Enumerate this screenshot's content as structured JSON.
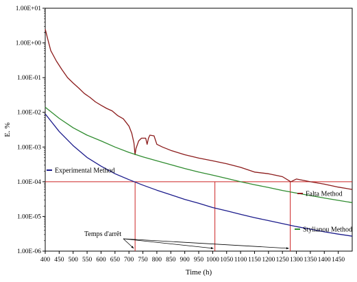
{
  "chart_data": {
    "type": "line",
    "xlabel": "Time (h)",
    "ylabel": "E. %",
    "xlim": [
      400,
      1500
    ],
    "ylim": [
      1e-06,
      10
    ],
    "yscale": "log",
    "x_ticks": [
      400,
      450,
      500,
      550,
      600,
      650,
      700,
      750,
      800,
      850,
      900,
      950,
      1000,
      1050,
      1100,
      1150,
      1200,
      1250,
      1300,
      1350,
      1400,
      1450
    ],
    "y_ticks": [
      {
        "value": 10,
        "label": "1.00E+01"
      },
      {
        "value": 1,
        "label": "1.00E+00"
      },
      {
        "value": 0.1,
        "label": "1.00E-01"
      },
      {
        "value": 0.01,
        "label": "1.00E-02"
      },
      {
        "value": 0.001,
        "label": "1.00E-03"
      },
      {
        "value": 0.0001,
        "label": "1.00E-04"
      },
      {
        "value": 1e-05,
        "label": "1.00E-05"
      },
      {
        "value": 1e-06,
        "label": "1.00E-06"
      }
    ],
    "grid": false,
    "series": [
      {
        "name": "Falta Method",
        "color": "#8b1a1a",
        "x": [
          400,
          410,
          420,
          440,
          460,
          480,
          500,
          520,
          540,
          560,
          580,
          600,
          620,
          640,
          660,
          680,
          700,
          710,
          718,
          722,
          725,
          735,
          745,
          760,
          765,
          770,
          775,
          790,
          800,
          820,
          850,
          900,
          950,
          1000,
          1050,
          1100,
          1150,
          1200,
          1250,
          1280,
          1300,
          1350,
          1400,
          1450,
          1500
        ],
        "y": [
          2.5,
          1.2,
          0.6,
          0.3,
          0.17,
          0.1,
          0.07,
          0.05,
          0.035,
          0.027,
          0.02,
          0.016,
          0.013,
          0.011,
          0.008,
          0.0065,
          0.004,
          0.0025,
          0.0013,
          0.0006,
          0.0009,
          0.0015,
          0.0018,
          0.0018,
          0.0012,
          0.0018,
          0.0022,
          0.0021,
          0.0012,
          0.001,
          0.0008,
          0.0006,
          0.00048,
          0.0004,
          0.00033,
          0.00026,
          0.00019,
          0.00017,
          0.00014,
          0.0001,
          0.00012,
          0.0001,
          8.5e-05,
          7e-05,
          6e-05
        ]
      },
      {
        "name": "Stylianou Method",
        "color": "#2e8b2e",
        "x": [
          400,
          450,
          500,
          550,
          600,
          650,
          700,
          750,
          800,
          850,
          900,
          950,
          1000,
          1050,
          1100,
          1150,
          1200,
          1250,
          1300,
          1350,
          1400,
          1450,
          1500
        ],
        "y": [
          0.014,
          0.0067,
          0.0036,
          0.0022,
          0.0015,
          0.001,
          0.0007,
          0.00052,
          0.0004,
          0.00031,
          0.00024,
          0.00019,
          0.000155,
          0.000125,
          0.0001,
          8.2e-05,
          6.8e-05,
          5.6e-05,
          4.7e-05,
          4e-05,
          3.4e-05,
          2.9e-05,
          2.5e-05
        ]
      },
      {
        "name": "Experimental Method",
        "color": "#1a1a8b",
        "x": [
          400,
          450,
          500,
          550,
          600,
          650,
          700,
          750,
          800,
          850,
          900,
          950,
          1000,
          1050,
          1100,
          1150,
          1200,
          1250,
          1300,
          1350,
          1400,
          1450,
          1500
        ],
        "y": [
          0.009,
          0.0028,
          0.0011,
          0.0005,
          0.00028,
          0.00017,
          0.000115,
          8e-05,
          5.7e-05,
          4.2e-05,
          3.1e-05,
          2.4e-05,
          1.8e-05,
          1.45e-05,
          1.15e-05,
          9.2e-06,
          7.6e-06,
          6.2e-06,
          5.1e-06,
          4.3e-06,
          3.6e-06,
          3.1e-06,
          2.7e-06
        ]
      }
    ],
    "reference_line": {
      "y": 0.0001,
      "color": "#cc2222"
    },
    "crossings": [
      {
        "x": 722,
        "color": "#cc2222"
      },
      {
        "x": 1008,
        "color": "#cc2222"
      },
      {
        "x": 1278,
        "color": "#cc2222"
      }
    ],
    "legend": [
      {
        "label": "Experimental Method",
        "color": "#1a1a8b"
      },
      {
        "label": "Falta Method",
        "color": "#8b1a1a"
      },
      {
        "label": "Stylianou Method",
        "color": "#2e8b2e"
      }
    ],
    "annotation": {
      "text": "Temps d'arrêt",
      "points_to": [
        722,
        1008,
        1278
      ]
    }
  }
}
